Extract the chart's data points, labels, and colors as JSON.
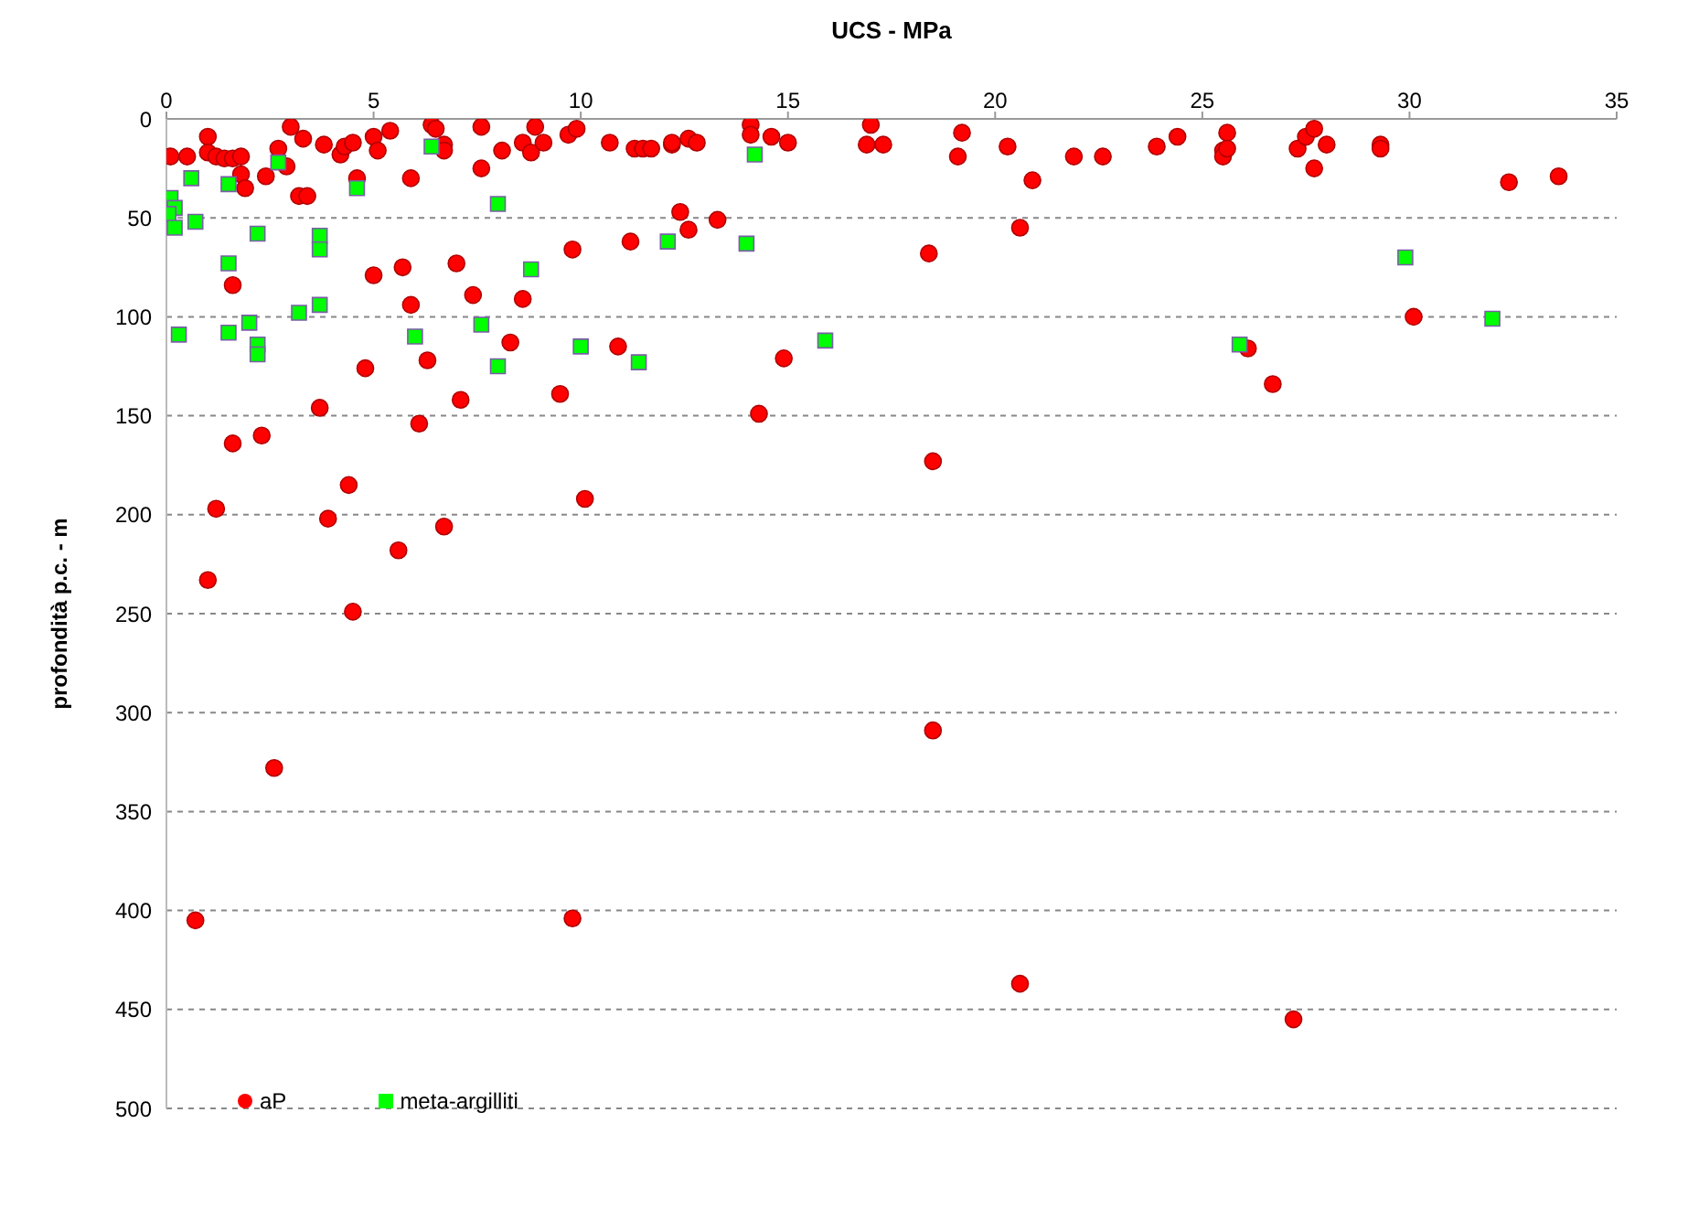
{
  "chart_data": {
    "type": "scatter",
    "xlabel": "UCS  - MPa",
    "ylabel": "profondità p.c. - m",
    "xlim": [
      0,
      35
    ],
    "xticks": [
      0,
      5,
      10,
      15,
      20,
      25,
      30,
      35
    ],
    "ylim": [
      500,
      0
    ],
    "yticks": [
      0,
      50,
      100,
      150,
      200,
      250,
      300,
      350,
      400,
      450,
      500
    ],
    "grid": "y",
    "legend": "bottom left",
    "series": [
      {
        "name": "aP",
        "color": "#ff0000",
        "marker": "circle",
        "x": [
          0.1,
          0.5,
          1.0,
          1.0,
          1.2,
          1.4,
          1.6,
          1.8,
          1.8,
          1.9,
          2.4,
          2.7,
          2.9,
          3.0,
          3.3,
          3.2,
          3.4,
          3.8,
          4.2,
          4.3,
          4.5,
          4.6,
          5.0,
          5.1,
          5.4,
          5.9,
          6.4,
          6.5,
          6.7,
          6.7,
          7.6,
          7.6,
          8.1,
          8.6,
          8.8,
          8.9,
          9.1,
          9.7,
          9.9,
          10.7,
          11.3,
          11.5,
          11.7,
          12.2,
          12.2,
          12.6,
          12.8,
          14.1,
          14.1,
          14.6,
          15.0,
          16.9,
          17.0,
          17.3,
          19.1,
          19.2,
          20.3,
          20.9,
          21.9,
          22.6,
          23.9,
          24.4,
          25.5,
          25.5,
          25.6,
          25.6,
          27.3,
          27.5,
          27.7,
          28.0,
          27.7,
          29.3,
          29.3,
          32.4,
          33.6,
          5.0,
          5.7,
          7.0,
          9.8,
          1.6,
          5.9,
          7.4,
          8.6,
          11.2,
          12.6,
          12.4,
          13.3,
          18.4,
          20.6,
          8.3,
          10.9,
          4.8,
          6.3,
          14.9,
          30.1,
          26.1,
          26.7,
          7.1,
          9.5,
          3.7,
          6.1,
          1.6,
          2.3,
          4.4,
          14.3,
          18.5,
          1.2,
          3.9,
          6.7,
          10.1,
          5.6,
          1.0,
          4.5,
          18.5,
          2.6,
          0.7,
          9.8,
          20.6,
          27.2
        ],
        "values": [
          19,
          19,
          9,
          17,
          19,
          20,
          20,
          19,
          28,
          35,
          29,
          15,
          24,
          4,
          10,
          39,
          39,
          13,
          18,
          14,
          12,
          30,
          9,
          16,
          6,
          30,
          3,
          5,
          13,
          16,
          4,
          25,
          16,
          12,
          17,
          4,
          12,
          8,
          5,
          12,
          15,
          15,
          15,
          13,
          12,
          10,
          12,
          3,
          8,
          9,
          12,
          13,
          3,
          13,
          19,
          7,
          14,
          31,
          19,
          19,
          14,
          9,
          16,
          19,
          7,
          15,
          15,
          9,
          5,
          13,
          25,
          13,
          15,
          32,
          29,
          79,
          75,
          73,
          66,
          84,
          94,
          89,
          91,
          62,
          56,
          47,
          51,
          68,
          55,
          113,
          115,
          126,
          122,
          121,
          100,
          116,
          134,
          142,
          139,
          146,
          154,
          164,
          160,
          185,
          149,
          173,
          197,
          202,
          206,
          192,
          218,
          233,
          249,
          309,
          328,
          405,
          404,
          437,
          455
        ]
      },
      {
        "name": "meta-argilliti",
        "color": "#00ff00",
        "marker": "square",
        "x": [
          0.6,
          0.1,
          0.2,
          0.05,
          0.2,
          0.7,
          1.5,
          2.7,
          4.6,
          2.2,
          3.7,
          3.7,
          1.5,
          6.4,
          8.0,
          8.8,
          12.1,
          3.2,
          3.7,
          2.0,
          0.3,
          1.5,
          2.2,
          2.2,
          6.0,
          7.6,
          8.0,
          10.0,
          11.4,
          14.2,
          14.0,
          15.9,
          29.9,
          32.0,
          25.9
        ],
        "values": [
          30,
          40,
          45,
          48,
          55,
          52,
          33,
          22,
          35,
          58,
          59,
          66,
          73,
          14,
          43,
          76,
          62,
          98,
          94,
          103,
          109,
          108,
          114,
          119,
          110,
          104,
          125,
          115,
          123,
          18,
          63,
          112,
          70,
          101,
          114
        ]
      }
    ]
  }
}
